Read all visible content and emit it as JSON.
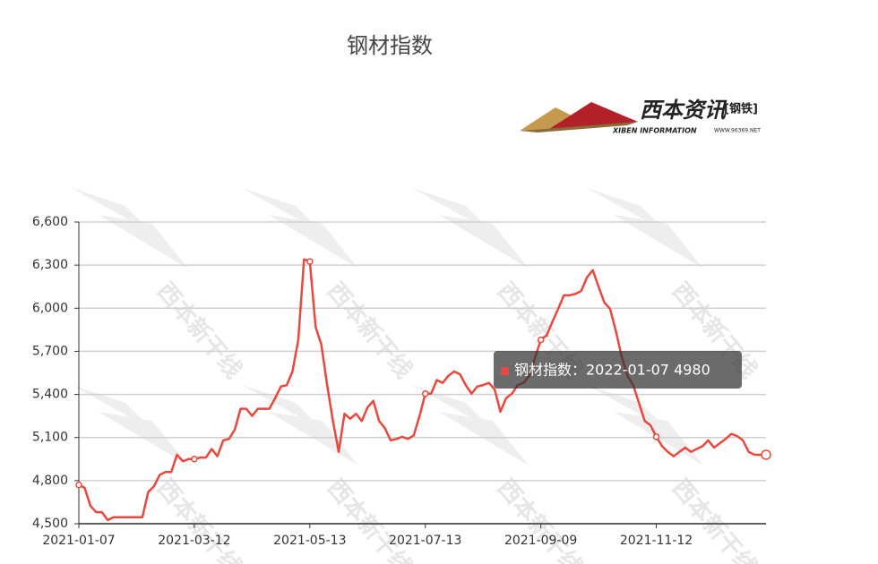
{
  "chart_data": {
    "type": "line",
    "title": "钢材指数",
    "logo": {
      "name": "西本资讯",
      "tag": "[钢铁]",
      "english": "XIBEN INFORMATION",
      "url": "WWW.96369.NET"
    },
    "watermark": "西本新干线",
    "tooltip": "钢材指数：2022-01-07  4980",
    "categories": [
      "2021-01-07",
      null,
      null,
      null,
      null,
      null,
      null,
      null,
      null,
      null,
      null,
      null,
      null,
      null,
      null,
      null,
      null,
      null,
      null,
      null,
      "2021-03-12",
      null,
      null,
      null,
      null,
      null,
      null,
      null,
      null,
      null,
      null,
      null,
      null,
      null,
      null,
      null,
      null,
      null,
      null,
      null,
      "2021-05-13",
      null,
      null,
      null,
      null,
      null,
      null,
      null,
      null,
      null,
      null,
      null,
      null,
      null,
      null,
      null,
      null,
      null,
      null,
      null,
      "2021-07-13",
      null,
      null,
      null,
      null,
      null,
      null,
      null,
      null,
      null,
      null,
      null,
      null,
      null,
      null,
      null,
      null,
      null,
      null,
      null,
      "2021-09-09",
      null,
      null,
      null,
      null,
      null,
      null,
      null,
      null,
      null,
      null,
      null,
      null,
      null,
      null,
      null,
      null,
      null,
      null,
      null,
      "2021-11-12",
      null,
      null,
      null,
      null,
      null,
      null,
      null,
      null,
      null,
      null,
      null,
      null,
      null,
      null,
      null,
      null,
      null,
      null,
      null
    ],
    "series": [
      {
        "name": "钢材指数",
        "color": "#e8483d",
        "values": [
          4770,
          4750,
          4625,
          4580,
          4580,
          4525,
          4545,
          4545,
          4545,
          4545,
          4545,
          4545,
          4720,
          4760,
          4840,
          4860,
          4860,
          4980,
          4935,
          4950,
          4950,
          4960,
          4960,
          5020,
          4970,
          5080,
          5090,
          5155,
          5300,
          5300,
          5250,
          5300,
          5300,
          5300,
          5375,
          5455,
          5465,
          5560,
          5780,
          6340,
          6325,
          5870,
          5745,
          5465,
          5215,
          5000,
          5265,
          5230,
          5265,
          5215,
          5310,
          5355,
          5215,
          5165,
          5080,
          5090,
          5105,
          5090,
          5115,
          5250,
          5405,
          5405,
          5500,
          5480,
          5530,
          5560,
          5540,
          5465,
          5405,
          5455,
          5465,
          5480,
          5435,
          5280,
          5375,
          5405,
          5465,
          5480,
          5530,
          5655,
          5780,
          5810,
          5905,
          5995,
          6090,
          6090,
          6100,
          6120,
          6215,
          6265,
          6150,
          6040,
          5995,
          5840,
          5665,
          5530,
          5465,
          5340,
          5215,
          5185,
          5105,
          5040,
          5000,
          4970,
          5000,
          5030,
          5000,
          5020,
          5040,
          5080,
          5030,
          5060,
          5090,
          5125,
          5110,
          5080,
          5000,
          4980,
          4980,
          4980
        ]
      }
    ],
    "ylim": [
      4500,
      6600
    ],
    "yticks": [
      {
        "value": 4500,
        "label": "4,500"
      },
      {
        "value": 4800,
        "label": "4,800"
      },
      {
        "value": 5100,
        "label": "5,100"
      },
      {
        "value": 5400,
        "label": "5,400"
      },
      {
        "value": 5700,
        "label": "5,700"
      },
      {
        "value": 6000,
        "label": "6,000"
      },
      {
        "value": 6300,
        "label": "6,300"
      },
      {
        "value": 6600,
        "label": "6,600"
      }
    ],
    "grid": true
  }
}
